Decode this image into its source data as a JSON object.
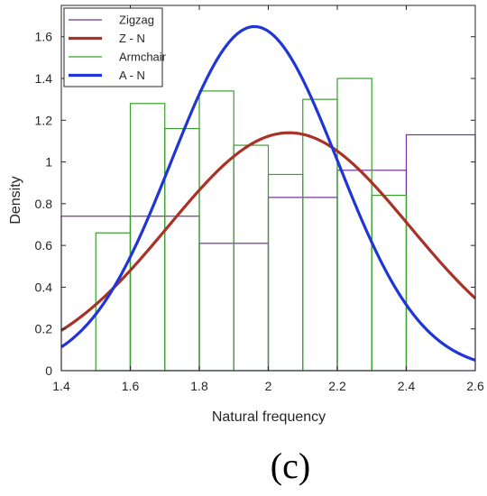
{
  "panel_label": "(c)",
  "chart_data": {
    "type": "histogram",
    "xlabel": "Natural frequency",
    "ylabel": "Density",
    "xlim": [
      1.4,
      2.6
    ],
    "ylim": [
      0,
      1.75
    ],
    "xticks": [
      "1.4",
      "1.6",
      "1.8",
      "2",
      "2.2",
      "2.4",
      "2.6"
    ],
    "yticks": [
      "0",
      "0.2",
      "0.4",
      "0.6",
      "0.8",
      "1",
      "1.2",
      "1.4",
      "1.6"
    ],
    "legend_position": "top-left",
    "series": [
      {
        "name": "Zigzag",
        "kind": "histogram",
        "color": "#7030a0",
        "bins": [
          {
            "x0": 1.4,
            "x1": 1.6,
            "value": 0.74
          },
          {
            "x0": 1.6,
            "x1": 1.8,
            "value": 0.74
          },
          {
            "x0": 1.8,
            "x1": 2.0,
            "value": 0.61
          },
          {
            "x0": 2.0,
            "x1": 2.2,
            "value": 0.83
          },
          {
            "x0": 2.2,
            "x1": 2.4,
            "value": 0.96
          },
          {
            "x0": 2.4,
            "x1": 2.6,
            "value": 1.13
          }
        ]
      },
      {
        "name": "Z - N",
        "kind": "normal-fit",
        "color": "#a93226",
        "mu": 2.06,
        "sigma": 0.35
      },
      {
        "name": "Armchair",
        "kind": "histogram",
        "color": "#3aa02d",
        "bins": [
          {
            "x0": 1.5,
            "x1": 1.6,
            "value": 0.66
          },
          {
            "x0": 1.6,
            "x1": 1.7,
            "value": 1.28
          },
          {
            "x0": 1.7,
            "x1": 1.8,
            "value": 1.16
          },
          {
            "x0": 1.8,
            "x1": 1.9,
            "value": 1.34
          },
          {
            "x0": 1.9,
            "x1": 2.0,
            "value": 1.08
          },
          {
            "x0": 2.0,
            "x1": 2.1,
            "value": 0.94
          },
          {
            "x0": 2.1,
            "x1": 2.2,
            "value": 1.3
          },
          {
            "x0": 2.2,
            "x1": 2.3,
            "value": 1.4
          },
          {
            "x0": 2.3,
            "x1": 2.4,
            "value": 0.84
          }
        ]
      },
      {
        "name": "A - N",
        "kind": "normal-fit",
        "color": "#1f35d6",
        "mu": 1.96,
        "sigma": 0.242
      }
    ]
  }
}
